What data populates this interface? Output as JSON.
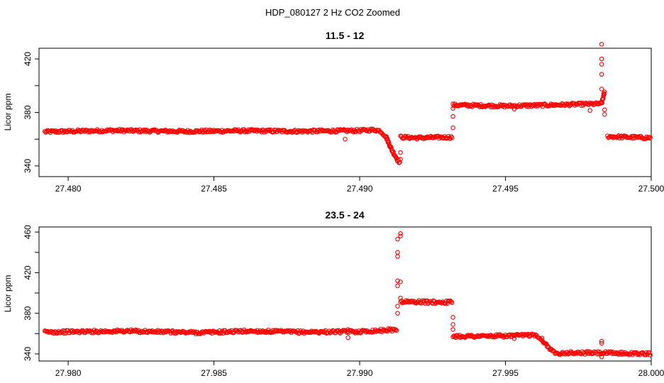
{
  "figure": {
    "suptitle": "HDP_080127  2 Hz CO2 Zoomed"
  },
  "colors": {
    "points": "#ff0000",
    "axes": "#000000",
    "background": "#ffffff"
  },
  "chart_data": [
    {
      "type": "scatter",
      "title": "11.5 - 12",
      "xlabel": "",
      "ylabel": "Licor ppm",
      "xlim": [
        27.479,
        27.5
      ],
      "ylim": [
        332,
        428
      ],
      "xticks": [
        "27.480",
        "27.485",
        "27.490",
        "27.495",
        "27.500"
      ],
      "xtick_values": [
        27.48,
        27.485,
        27.49,
        27.495,
        27.5
      ],
      "yticks": [
        "340",
        "380",
        "420"
      ],
      "ytick_values": [
        340,
        380,
        420
      ],
      "grid": false,
      "marker": "open-circle",
      "segments": [
        [
          [
            27.4792,
            365.5
          ],
          [
            27.4815,
            366.5
          ],
          [
            27.484,
            365.8
          ],
          [
            27.486,
            366.3
          ],
          [
            27.488,
            365.9
          ],
          [
            27.49,
            366.4
          ],
          [
            27.4905,
            367.0
          ]
        ],
        [
          [
            27.4905,
            367.0
          ],
          [
            27.4907,
            366.2
          ],
          [
            27.4909,
            362.0
          ],
          [
            27.4911,
            352.0
          ],
          [
            27.4913,
            344.5
          ],
          [
            27.4914,
            342.0
          ]
        ],
        [
          [
            27.4914,
            361.5
          ],
          [
            27.492,
            361.0
          ],
          [
            27.4926,
            361.3
          ],
          [
            27.4932,
            361.5
          ]
        ],
        [
          [
            27.4932,
            385.5
          ],
          [
            27.495,
            384.8
          ],
          [
            27.4965,
            385.5
          ],
          [
            27.4983,
            386.5
          ]
        ],
        [
          [
            27.4983,
            386.5
          ],
          [
            27.4984,
            395.5
          ]
        ],
        [
          [
            27.4985,
            362.0
          ],
          [
            27.4992,
            361.5
          ],
          [
            27.5,
            361.0
          ]
        ]
      ],
      "outliers": [
        [
          27.4895,
          360.0
        ],
        [
          27.4914,
          350.0
        ],
        [
          27.4914,
          345.0
        ],
        [
          27.4932,
          368.5
        ],
        [
          27.4932,
          377.0
        ],
        [
          27.4932,
          383.0
        ],
        [
          27.4983,
          397.5
        ],
        [
          27.4983,
          408.5
        ],
        [
          27.4983,
          416.0
        ],
        [
          27.4983,
          420.0
        ],
        [
          27.4983,
          431.0
        ],
        [
          27.4984,
          382.0
        ],
        [
          27.4984,
          378.5
        ],
        [
          27.4953,
          382.5
        ],
        [
          27.4979,
          381.5
        ]
      ]
    },
    {
      "type": "scatter",
      "title": "23.5 - 24",
      "xlabel": "",
      "ylabel": "Licor ppm",
      "xlim": [
        27.979,
        28.0
      ],
      "ylim": [
        333,
        465
      ],
      "xticks": [
        "27.980",
        "27.985",
        "27.990",
        "27.995",
        "28.000"
      ],
      "xtick_values": [
        27.98,
        27.985,
        27.99,
        27.995,
        28.0
      ],
      "yticks": [
        "340",
        "380",
        "420",
        "460"
      ],
      "ytick_values": [
        340,
        380,
        420,
        460
      ],
      "grid": false,
      "marker": "open-circle",
      "segments": [
        [
          [
            27.9792,
            361.5
          ],
          [
            27.982,
            362.5
          ],
          [
            27.9845,
            361.0
          ],
          [
            27.9862,
            362.5
          ],
          [
            27.988,
            361.5
          ],
          [
            27.99,
            362.0
          ],
          [
            27.9913,
            364.0
          ]
        ],
        [
          [
            27.9914,
            391.5
          ],
          [
            27.9925,
            391.0
          ],
          [
            27.9932,
            391.0
          ]
        ],
        [
          [
            27.9932,
            357.5
          ],
          [
            27.9945,
            357.5
          ],
          [
            27.9955,
            358.0
          ],
          [
            27.996,
            359.0
          ]
        ],
        [
          [
            27.996,
            359.0
          ],
          [
            27.9962,
            356.0
          ],
          [
            27.9964,
            349.0
          ],
          [
            27.9966,
            342.5
          ],
          [
            27.9968,
            341.0
          ]
        ],
        [
          [
            27.9968,
            341.0
          ],
          [
            27.9983,
            341.0
          ],
          [
            27.9992,
            340.5
          ],
          [
            28.0,
            340.0
          ]
        ]
      ],
      "outliers": [
        [
          27.9896,
          356.0
        ],
        [
          27.9896,
          364.0
        ],
        [
          27.9913,
          380.0
        ],
        [
          27.9913,
          387.0
        ],
        [
          27.9913,
          407.0
        ],
        [
          27.9913,
          412.0
        ],
        [
          27.9913,
          436.0
        ],
        [
          27.9913,
          440.0
        ],
        [
          27.9913,
          453.0
        ],
        [
          27.9914,
          456.0
        ],
        [
          27.9914,
          458.5
        ],
        [
          27.9914,
          411.0
        ],
        [
          27.9914,
          395.0
        ],
        [
          27.9932,
          376.0
        ],
        [
          27.9932,
          369.0
        ],
        [
          27.9932,
          364.0
        ],
        [
          27.9983,
          337.0
        ],
        [
          27.9983,
          350.5
        ],
        [
          27.9983,
          352.5
        ],
        [
          27.9953,
          355.0
        ]
      ]
    }
  ]
}
